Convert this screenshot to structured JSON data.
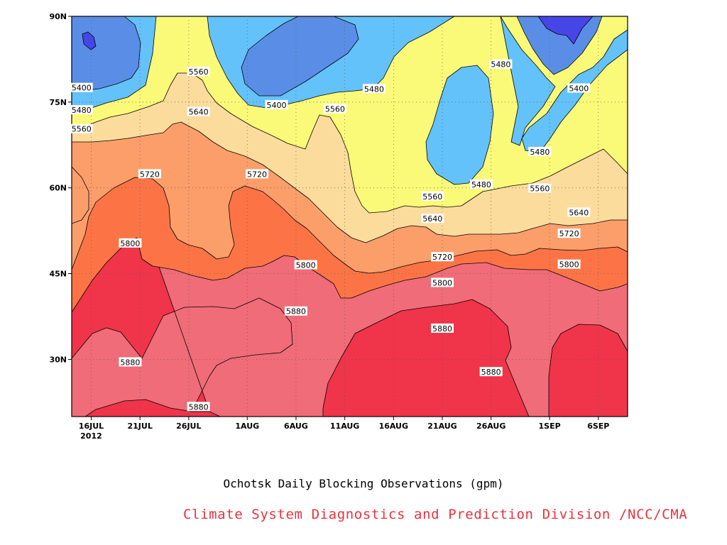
{
  "chart_data": {
    "type": "heatmap",
    "plot_kind": "filled latitude-time contour (Hovmoller)",
    "title": "Ochotsk Daily Blocking Observations (gpm)",
    "credit": "Climate System Diagnostics and Prediction Division /NCC/CMA",
    "credit_color": "#e8323c",
    "x_ticks": [
      "16JUL",
      "21JUL",
      "26JUL",
      "1AUG",
      "6AUG",
      "11AUG",
      "16AUG",
      "21AUG",
      "26AUG",
      "1SEP",
      "6SEP"
    ],
    "x_year_label": "2012",
    "x_range": [
      "2012-07-14",
      "2012-09-09"
    ],
    "y_ticks": [
      "90N",
      "75N",
      "60N",
      "45N",
      "30N"
    ],
    "y_range_deg_north": [
      20,
      90
    ],
    "levels": [
      5400,
      5480,
      5560,
      5640,
      5720,
      5800,
      5880
    ],
    "band_colors": [
      "#4646e8",
      "#5a8ee6",
      "#64c2fa",
      "#fafa78",
      "#fcdc9c",
      "#fc9e6a",
      "#fc7446",
      "#f06c78",
      "#f0344a"
    ],
    "contour_labels": [
      {
        "value": "5400",
        "date": "2012-07-15",
        "lat": 77.5
      },
      {
        "value": "5480",
        "date": "2012-07-15",
        "lat": 73.6
      },
      {
        "value": "5560",
        "date": "2012-07-15",
        "lat": 70.3
      },
      {
        "value": "5560",
        "date": "2012-07-27",
        "lat": 80.3
      },
      {
        "value": "5640",
        "date": "2012-07-27",
        "lat": 73.3
      },
      {
        "value": "5720",
        "date": "2012-07-22",
        "lat": 62.4
      },
      {
        "value": "5720",
        "date": "2012-08-02",
        "lat": 62.4
      },
      {
        "value": "5800",
        "date": "2012-07-20",
        "lat": 50.3
      },
      {
        "value": "5800",
        "date": "2012-08-07",
        "lat": 46.5
      },
      {
        "value": "5400",
        "date": "2012-08-04",
        "lat": 74.5
      },
      {
        "value": "5560",
        "date": "2012-08-10",
        "lat": 73.8
      },
      {
        "value": "5480",
        "date": "2012-08-14",
        "lat": 77.3
      },
      {
        "value": "5480",
        "date": "2012-08-27",
        "lat": 81.6
      },
      {
        "value": "5480",
        "date": "2012-08-25",
        "lat": 60.6
      },
      {
        "value": "5560",
        "date": "2012-08-20",
        "lat": 58.5
      },
      {
        "value": "5640",
        "date": "2012-08-20",
        "lat": 54.6
      },
      {
        "value": "5720",
        "date": "2012-08-21",
        "lat": 47.9
      },
      {
        "value": "5800",
        "date": "2012-08-21",
        "lat": 43.4
      },
      {
        "value": "5880",
        "date": "2012-08-21",
        "lat": 35.4
      },
      {
        "value": "5880",
        "date": "2012-08-06",
        "lat": 38.4
      },
      {
        "value": "5880",
        "date": "2012-07-20",
        "lat": 29.5
      },
      {
        "value": "5880",
        "date": "2012-07-27",
        "lat": 21.7
      },
      {
        "value": "5880",
        "date": "2012-08-26",
        "lat": 27.8
      },
      {
        "value": "5400",
        "date": "2012-09-04",
        "lat": 77.4
      },
      {
        "value": "5480",
        "date": "2012-08-31",
        "lat": 66.3
      },
      {
        "value": "5560",
        "date": "2012-08-31",
        "lat": 59.9
      },
      {
        "value": "5640",
        "date": "2012-09-04",
        "lat": 55.7
      },
      {
        "value": "5720",
        "date": "2012-09-03",
        "lat": 52.0
      },
      {
        "value": "5800",
        "date": "2012-09-03",
        "lat": 46.6
      }
    ]
  }
}
